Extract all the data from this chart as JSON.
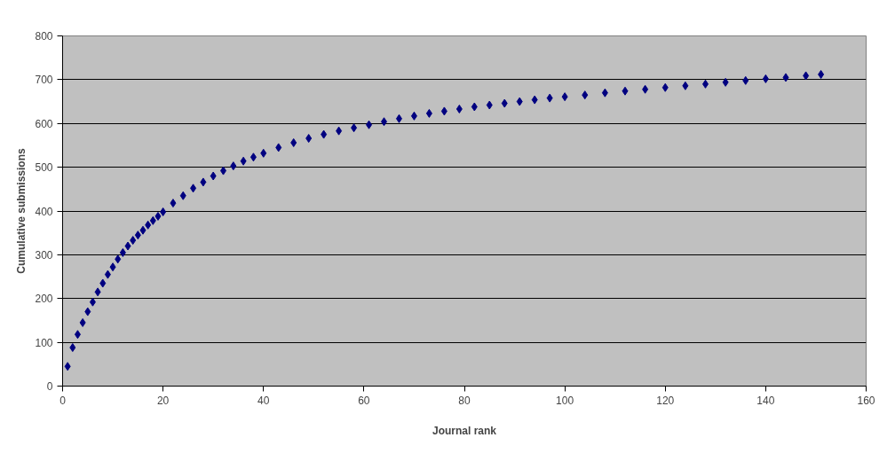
{
  "chart_data": {
    "type": "scatter",
    "xlabel": "Journal rank",
    "ylabel": "Cumulative submissions",
    "x": [
      1,
      2,
      3,
      4,
      5,
      6,
      7,
      8,
      9,
      10,
      11,
      12,
      13,
      14,
      15,
      16,
      17,
      18,
      19,
      20,
      22,
      24,
      26,
      28,
      30,
      32,
      34,
      36,
      38,
      40,
      43,
      46,
      49,
      52,
      55,
      58,
      61,
      64,
      67,
      70,
      73,
      76,
      79,
      82,
      85,
      88,
      91,
      94,
      97,
      100,
      104,
      108,
      112,
      116,
      120,
      124,
      128,
      132,
      136,
      140,
      144,
      148,
      151
    ],
    "series": [
      {
        "color": "#000080",
        "values": [
          45,
          88,
          118,
          145,
          170,
          192,
          215,
          235,
          255,
          272,
          290,
          305,
          320,
          333,
          345,
          356,
          368,
          378,
          388,
          398,
          418,
          435,
          452,
          466,
          480,
          492,
          503,
          514,
          523,
          532,
          545,
          556,
          566,
          575,
          583,
          590,
          597,
          604,
          611,
          617,
          623,
          628,
          633,
          638,
          642,
          646,
          650,
          654,
          658,
          661,
          665,
          670,
          674,
          678,
          682,
          686,
          690,
          694,
          698,
          702,
          705,
          709,
          712
        ]
      }
    ],
    "xlim": [
      0,
      160
    ],
    "xticks": [
      0,
      20,
      40,
      60,
      80,
      100,
      120,
      140,
      160
    ],
    "ylim": [
      0,
      800
    ],
    "yticks": [
      0,
      100,
      200,
      300,
      400,
      500,
      600,
      700,
      800
    ],
    "grid": "y",
    "marker": "diamond"
  }
}
